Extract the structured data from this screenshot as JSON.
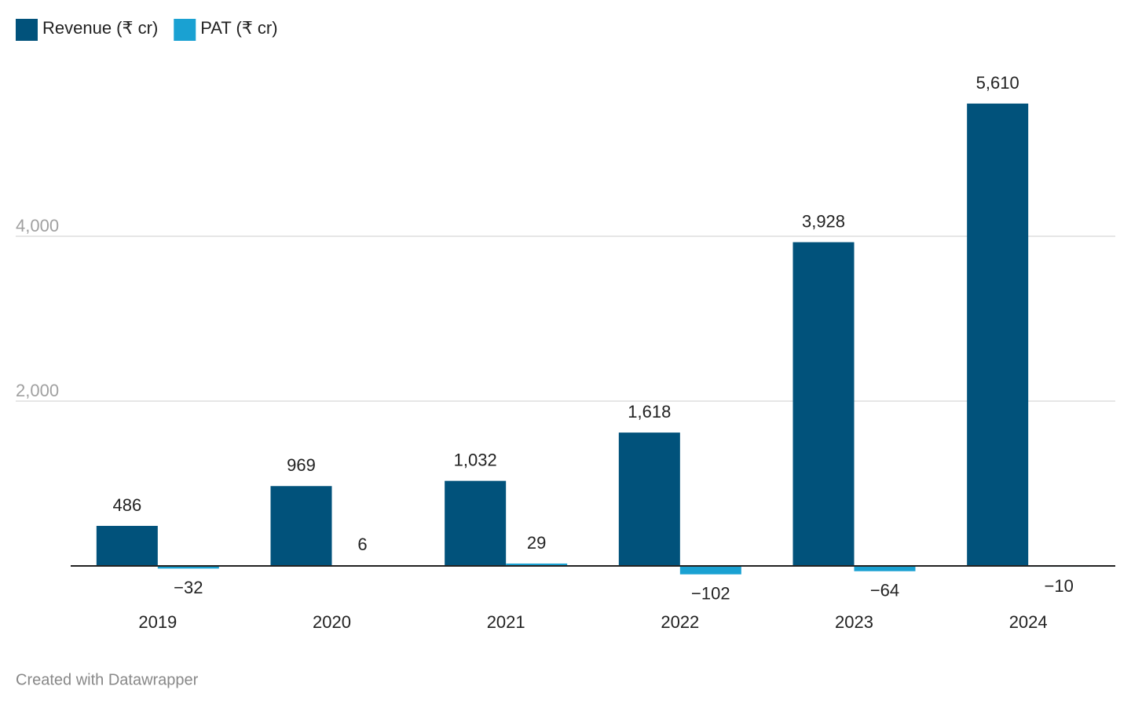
{
  "chart_data": {
    "type": "bar",
    "categories": [
      "2019",
      "2020",
      "2021",
      "2022",
      "2023",
      "2024"
    ],
    "series": [
      {
        "name": "Revenue (₹ cr)",
        "color": "#01527b",
        "values": [
          486,
          969,
          1032,
          1618,
          3928,
          5610
        ],
        "value_labels": [
          "486",
          "969",
          "1,032",
          "1,618",
          "3,928",
          "5,610"
        ]
      },
      {
        "name": "PAT (₹ cr)",
        "color": "#1aa1d2",
        "values": [
          -32,
          6,
          29,
          -102,
          -64,
          -10
        ],
        "value_labels": [
          "−32",
          "6",
          "29",
          "−102",
          "−64",
          "−10"
        ]
      }
    ],
    "ylim": [
      -200,
      6000
    ],
    "yticks": [
      {
        "value": 2000,
        "label": "2,000"
      },
      {
        "value": 4000,
        "label": "4,000"
      }
    ],
    "grid": true,
    "legend": "top-left",
    "footer": "Created with Datawrapper"
  }
}
